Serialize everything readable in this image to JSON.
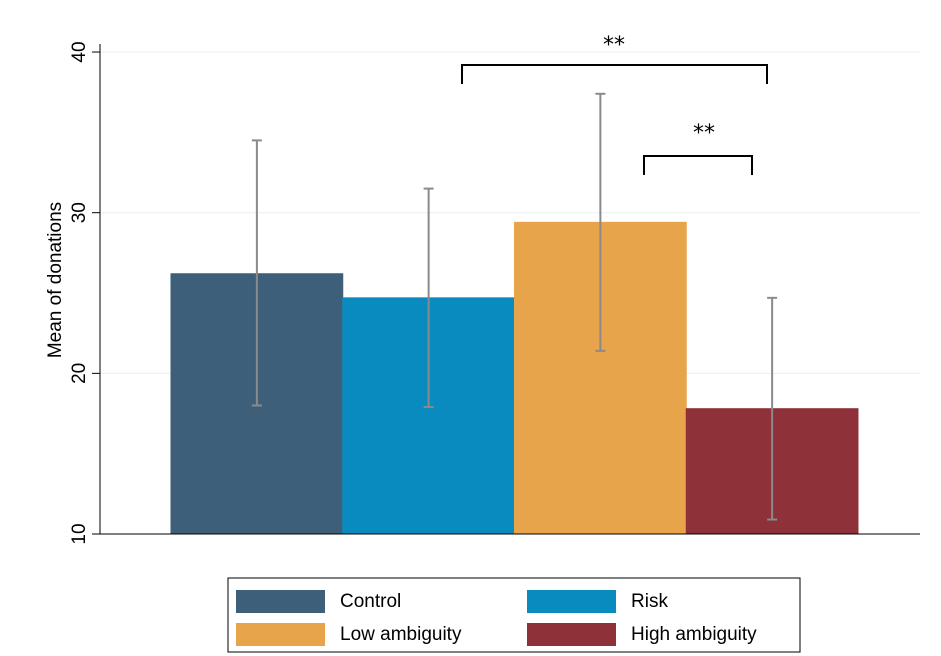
{
  "chart_data": {
    "type": "bar",
    "ylabel": "Mean of donations",
    "ylim": [
      10,
      40.5
    ],
    "yticks": [
      10,
      20,
      30,
      40
    ],
    "grid": true,
    "series": [
      {
        "name": "Control",
        "color": "#3e5f7a",
        "values": [
          26.2
        ],
        "lower": [
          18.0
        ],
        "upper": [
          34.5
        ]
      },
      {
        "name": "Risk",
        "color": "#0a8bbf",
        "values": [
          24.7
        ],
        "lower": [
          17.9
        ],
        "upper": [
          31.5
        ]
      },
      {
        "name": "Low ambiguity",
        "color": "#e8a44a",
        "values": [
          29.4
        ],
        "lower": [
          21.4
        ],
        "upper": [
          37.4
        ]
      },
      {
        "name": "High ambiguity",
        "color": "#8f3139",
        "values": [
          17.8
        ],
        "lower": [
          10.9
        ],
        "upper": [
          24.7
        ]
      }
    ],
    "annotations": [
      "**",
      "**"
    ]
  }
}
